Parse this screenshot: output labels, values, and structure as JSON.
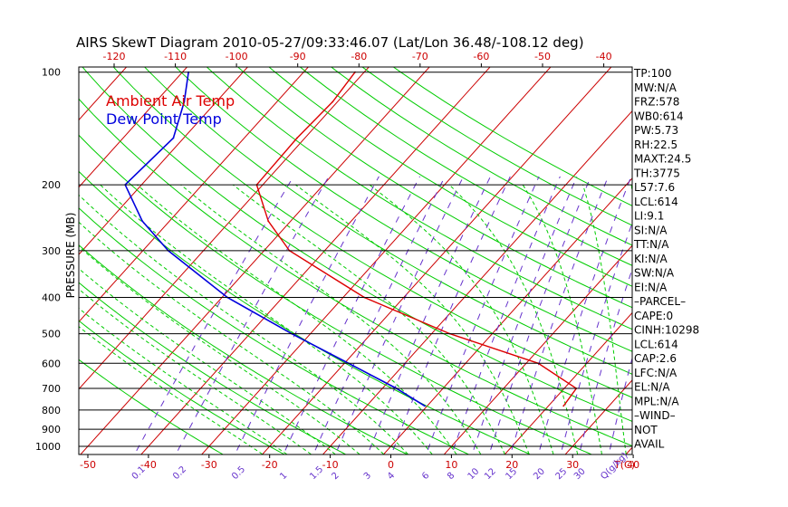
{
  "chart_data": {
    "type": "line",
    "title": "AIRS SkewT Diagram 2010-05-27/09:33:46.07 (Lat/Lon 36.48/-108.12 deg)",
    "ylabel": "PRESSURE (MB)",
    "y_scale": "log",
    "ylim": [
      1000,
      100
    ],
    "xlim": [
      -50,
      40
    ],
    "x_bottom_unit": "T(C)",
    "mixing_ratio_unit": "Q(g/kg)",
    "y_ticks": [
      100,
      200,
      300,
      400,
      500,
      600,
      700,
      800,
      900,
      1000
    ],
    "x_bottom_ticks": [
      -50,
      -40,
      -30,
      -20,
      -10,
      0,
      10,
      20,
      30,
      40
    ],
    "x_top_ticks": [
      -120,
      -110,
      -100,
      -90,
      -80,
      -70,
      -60,
      -50,
      -40
    ],
    "mixing_ratio_ticks": [
      "0.1",
      "0.2",
      "0.5",
      "1",
      "1.5",
      "2",
      "3",
      "4",
      "6",
      "8",
      "10",
      "12",
      "15",
      "20",
      "25",
      "30",
      "40",
      "50"
    ],
    "mixing_ratio_values": [
      0.1,
      0.2,
      0.5,
      1,
      1.5,
      2,
      3,
      4,
      6,
      8,
      10,
      12,
      15,
      20,
      25,
      30,
      40,
      50
    ],
    "legend": [
      "Ambient Air Temp",
      "Dew Point Temp"
    ],
    "legend_placement": "top-left",
    "series": [
      {
        "name": "Ambient Air Temp",
        "color": "#dd0000",
        "pressure": [
          780,
          700,
          600,
          500,
          400,
          300,
          250,
          200,
          150,
          120,
          100
        ],
        "temperature": [
          22.5,
          22.0,
          12.0,
          -7.0,
          -26.5,
          -45.8,
          -53.7,
          -61.0,
          -61.3,
          -60.8,
          -61.5
        ]
      },
      {
        "name": "Dew Point Temp",
        "color": "#0000dd",
        "pressure": [
          780,
          700,
          600,
          500,
          400,
          300,
          250,
          200,
          150,
          120,
          100
        ],
        "temperature": [
          -0.4,
          -7.7,
          -19.3,
          -33.1,
          -49.1,
          -65.8,
          -74.5,
          -82.7,
          -81.7,
          -85.3,
          -89.0
        ]
      }
    ],
    "side_panel": [
      "TP:100",
      "MW:N/A",
      "FRZ:578",
      "WB0:614",
      "PW:5.73",
      "RH:22.5",
      "MAXT:24.5",
      "TH:3775",
      "L57:7.6",
      "LCL:614",
      "LI:9.1",
      "SI:N/A",
      "TT:N/A",
      "KI:N/A",
      "SW:N/A",
      "EI:N/A",
      "–PARCEL–",
      "CAPE:0",
      "CINH:10298",
      "LCL:614",
      "CAP:2.6",
      "LFC:N/A",
      "EL:N/A",
      "MPL:N/A",
      "–WIND–",
      "NOT",
      "AVAIL"
    ],
    "colors": {
      "axes": "#000000",
      "isotherms": "#cc0000",
      "dry_adiabats": "#00cc00",
      "moist_adiabats": "#00cc00",
      "mixing_ratio_lines": "#6633cc",
      "axis_tick_labels": "#cc0000",
      "mixing_ratio_labels": "#6633cc",
      "legend_air": "#dd0000",
      "legend_dew": "#0000dd"
    }
  }
}
